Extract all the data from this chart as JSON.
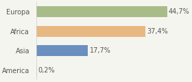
{
  "categories": [
    "Europa",
    "Africa",
    "Asia",
    "America"
  ],
  "values": [
    44.7,
    37.4,
    17.7,
    0.2
  ],
  "labels": [
    "44,7%",
    "37,4%",
    "17,7%",
    "0,2%"
  ],
  "bar_colors": [
    "#a8bc8a",
    "#e8b882",
    "#6b8fbf",
    "#d4d4d4"
  ],
  "background_color": "#f5f5f0",
  "xlim": [
    0,
    52
  ],
  "label_fontsize": 7.0,
  "category_fontsize": 7.0,
  "bar_height": 0.55
}
